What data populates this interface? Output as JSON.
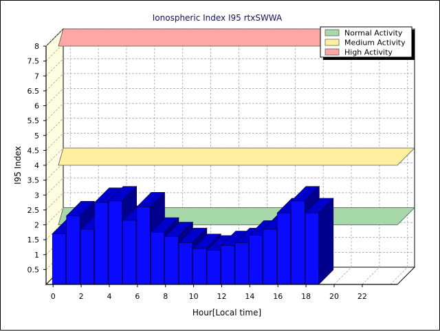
{
  "chart_data": {
    "type": "bar",
    "title": "Ionospheric Index I95 rtxSWWA",
    "xlabel": "Hour[Local time]",
    "ylabel": "I95 Index",
    "ylim": [
      0,
      8
    ],
    "y_ticks": [
      "0.5",
      "1",
      "1.5",
      "2",
      "2.5",
      "3",
      "3.5",
      "4",
      "4.5",
      "5",
      "5.5",
      "6",
      "6.5",
      "7",
      "7.5",
      "8"
    ],
    "x_ticks": [
      "0",
      "2",
      "4",
      "6",
      "8",
      "10",
      "12",
      "14",
      "16",
      "18",
      "20",
      "22"
    ],
    "x": [
      0,
      1,
      2,
      3,
      4,
      5,
      6,
      7,
      8,
      9,
      10,
      11,
      12,
      13,
      14,
      15,
      16,
      17,
      18
    ],
    "values": [
      1.7,
      2.3,
      1.85,
      2.75,
      2.8,
      2.15,
      2.6,
      1.75,
      1.6,
      1.4,
      1.2,
      1.15,
      1.3,
      1.4,
      1.65,
      1.85,
      2.4,
      2.8,
      2.4
    ],
    "bar_color": "#0a0aff",
    "grid": true,
    "legend_position": "top-right",
    "legend": [
      {
        "label": "Normal Activity",
        "color": "#a7d8a9"
      },
      {
        "label": "Medium Activity",
        "color": "#fff0a0"
      },
      {
        "label": "High Activity",
        "color": "#ffa6a6"
      }
    ],
    "threshold_bands": [
      {
        "label": "Normal Activity",
        "value": 2,
        "color": "#a7d8a9"
      },
      {
        "label": "Medium Activity",
        "value": 4,
        "color": "#fff0a0"
      },
      {
        "label": "High Activity",
        "value": 8,
        "color": "#ffa6a6"
      }
    ]
  }
}
